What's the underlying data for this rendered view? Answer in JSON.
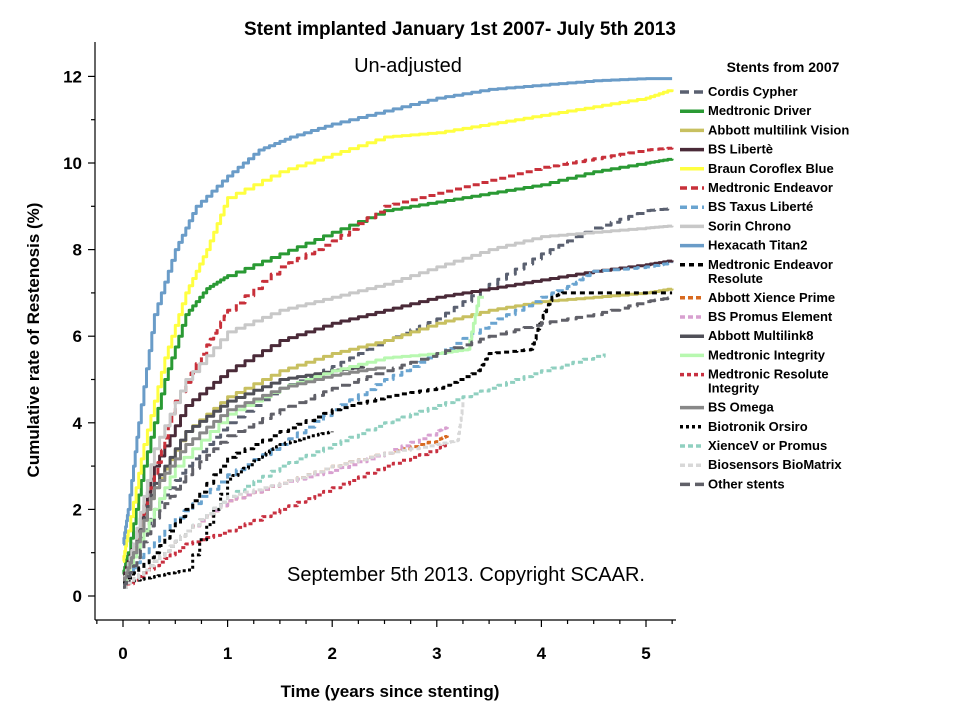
{
  "chart_data": {
    "type": "line",
    "title": "Stent implanted January 1st 2007- July 5th 2013",
    "subtitle": "Un-adjusted",
    "xlabel": "Time (years since stenting)",
    "ylabel": "Cumulative rate of Restenosis (%)",
    "annotation": "September 5th 2013. Copyright SCAAR.",
    "legend_title": "Stents from 2007",
    "legend_position": "right",
    "xlim": [
      -0.25,
      5.3
    ],
    "ylim": [
      -0.2,
      12.6
    ],
    "xticks": [
      0,
      1,
      2,
      3,
      4,
      5
    ],
    "yticks": [
      0,
      2,
      4,
      6,
      8,
      10,
      12
    ],
    "grid": false,
    "series": [
      {
        "name": "Cordis Cypher",
        "color": "#5a6070",
        "dash": "9,5",
        "x": [
          0,
          0.1,
          0.3,
          0.6,
          1,
          1.5,
          2,
          2.5,
          3,
          3.5,
          4,
          4.5,
          5,
          5.25
        ],
        "y": [
          0.3,
          1.0,
          2.0,
          3.0,
          4.0,
          4.8,
          5.3,
          5.9,
          6.4,
          7.2,
          7.9,
          8.5,
          8.9,
          8.95
        ]
      },
      {
        "name": "Medtronic Driver",
        "color": "#2a9a34",
        "dash": "",
        "x": [
          0,
          0.05,
          0.2,
          0.4,
          0.6,
          0.8,
          1,
          1.5,
          2,
          2.5,
          3,
          3.5,
          4,
          4.5,
          5,
          5.25
        ],
        "y": [
          0.5,
          1.0,
          3.0,
          5.0,
          6.5,
          7.1,
          7.4,
          7.9,
          8.4,
          8.9,
          9.1,
          9.3,
          9.5,
          9.8,
          10.0,
          10.1
        ]
      },
      {
        "name": "Abbott multilink Vision",
        "color": "#c8c060",
        "dash": "",
        "x": [
          0,
          0.1,
          0.3,
          0.6,
          1,
          1.5,
          2,
          2.5,
          3,
          3.5,
          4,
          4.5,
          5,
          5.25
        ],
        "y": [
          0.3,
          1.0,
          2.5,
          3.8,
          4.6,
          5.2,
          5.6,
          5.9,
          6.3,
          6.6,
          6.8,
          6.9,
          7.0,
          7.1
        ]
      },
      {
        "name": "BS Libertè",
        "color": "#4a2a38",
        "dash": "",
        "x": [
          0,
          0.1,
          0.3,
          0.6,
          1,
          1.5,
          2,
          2.5,
          3,
          3.5,
          4,
          4.5,
          5,
          5.25
        ],
        "y": [
          0.4,
          1.2,
          3.0,
          4.4,
          5.2,
          5.9,
          6.3,
          6.6,
          6.9,
          7.1,
          7.3,
          7.5,
          7.65,
          7.75
        ]
      },
      {
        "name": "Braun Coroflex Blue",
        "color": "#ffff40",
        "dash": "",
        "x": [
          0,
          0.05,
          0.2,
          0.4,
          0.6,
          0.8,
          1,
          1.5,
          2,
          2.5,
          3,
          3.5,
          4,
          4.5,
          5,
          5.25
        ],
        "y": [
          0.8,
          1.5,
          3.5,
          5.5,
          7.0,
          8.0,
          9.2,
          9.8,
          10.2,
          10.6,
          10.7,
          10.9,
          11.1,
          11.3,
          11.5,
          11.7
        ]
      },
      {
        "name": "Medtronic Endeavor",
        "color": "#c8303a",
        "dash": "7,4",
        "x": [
          0,
          0.1,
          0.3,
          0.5,
          0.8,
          1,
          1.5,
          2,
          2.5,
          3,
          3.5,
          4,
          4.5,
          5,
          5.25
        ],
        "y": [
          0.3,
          1.0,
          2.8,
          4.5,
          5.8,
          6.6,
          7.6,
          8.2,
          9.0,
          9.3,
          9.6,
          9.9,
          10.1,
          10.3,
          10.35
        ]
      },
      {
        "name": "BS Taxus Liberté",
        "color": "#6aa4d0",
        "dash": "7,4",
        "x": [
          0,
          0.2,
          0.5,
          1,
          1.5,
          2,
          2.5,
          3,
          3.5,
          4,
          4.3,
          4.5,
          5,
          5.25
        ],
        "y": [
          0.3,
          1.0,
          1.8,
          2.8,
          3.5,
          4.3,
          5.0,
          5.6,
          6.3,
          6.9,
          7.2,
          7.5,
          7.6,
          7.7
        ]
      },
      {
        "name": "Sorin Chrono",
        "color": "#c8c8c8",
        "dash": "",
        "x": [
          0,
          0.1,
          0.3,
          0.6,
          1,
          1.5,
          2,
          2.5,
          3,
          3.5,
          4,
          4.5,
          5,
          5.25
        ],
        "y": [
          0.3,
          1.2,
          3.4,
          5.0,
          6.1,
          6.6,
          6.9,
          7.2,
          7.6,
          8.0,
          8.3,
          8.4,
          8.5,
          8.55
        ]
      },
      {
        "name": "Hexacath Titan2",
        "color": "#6a9cc8",
        "dash": "",
        "x": [
          0,
          0.05,
          0.15,
          0.3,
          0.5,
          0.7,
          1,
          1.3,
          1.6,
          2,
          2.5,
          3,
          3.5,
          4,
          4.5,
          5,
          5.25
        ],
        "y": [
          1.2,
          2.0,
          4.0,
          6.5,
          8.0,
          9.0,
          9.7,
          10.3,
          10.6,
          10.9,
          11.2,
          11.5,
          11.7,
          11.8,
          11.9,
          11.95,
          11.95
        ]
      },
      {
        "name": "Medtronic Endeavor Resolute",
        "color": "#000000",
        "dash": "5,4",
        "x": [
          0,
          0.3,
          0.6,
          1,
          1.5,
          2,
          2.5,
          3,
          3.4,
          3.5,
          3.9,
          4.0,
          4.1,
          4.2,
          5.25
        ],
        "y": [
          0.3,
          1.0,
          2.0,
          3.2,
          3.8,
          4.3,
          4.6,
          4.8,
          5.2,
          5.6,
          5.7,
          6.4,
          6.9,
          7.0,
          7.0
        ]
      },
      {
        "name": "Abbott Xience Prime",
        "color": "#d86a20",
        "dash": "5,3",
        "x": [
          0,
          0.3,
          0.6,
          1,
          1.5,
          2,
          2.5,
          3,
          3.1
        ],
        "y": [
          0.2,
          0.8,
          1.5,
          2.2,
          2.6,
          3.0,
          3.3,
          3.6,
          3.7
        ]
      },
      {
        "name": "BS Promus Element",
        "color": "#d8a0d0",
        "dash": "5,3",
        "x": [
          0,
          0.3,
          0.6,
          1,
          1.5,
          2,
          2.5,
          3,
          3.1
        ],
        "y": [
          0.2,
          0.8,
          1.5,
          2.2,
          2.6,
          2.9,
          3.3,
          3.8,
          3.9
        ]
      },
      {
        "name": "Abbott Multilink8",
        "color": "#505058",
        "dash": "",
        "x": [
          0,
          0.1,
          0.3,
          0.6,
          1,
          1.5,
          2,
          2.3
        ],
        "y": [
          0.3,
          1.0,
          2.6,
          3.8,
          4.5,
          5.0,
          5.2,
          5.3
        ]
      },
      {
        "name": "Medtronic Integrity",
        "color": "#b8f8b0",
        "dash": "",
        "x": [
          0,
          0.2,
          0.5,
          1,
          1.5,
          2,
          2.5,
          3,
          3.3,
          3.4,
          3.45
        ],
        "y": [
          0.3,
          1.5,
          3.0,
          4.2,
          4.8,
          5.2,
          5.5,
          5.6,
          5.7,
          6.9,
          6.9
        ]
      },
      {
        "name": "Medtronic Resolute Integrity",
        "color": "#c83040",
        "dash": "4,3",
        "x": [
          0,
          0.3,
          0.6,
          1,
          1.5,
          2,
          2.5,
          3,
          3.1
        ],
        "y": [
          0.2,
          0.7,
          1.2,
          1.5,
          2.0,
          2.5,
          3.0,
          3.4,
          3.5
        ]
      },
      {
        "name": "BS Omega",
        "color": "#888888",
        "dash": "",
        "x": [
          0,
          0.1,
          0.3,
          0.6,
          1,
          1.5,
          2,
          2.5
        ],
        "y": [
          0.3,
          1.0,
          2.5,
          3.5,
          4.3,
          4.8,
          5.1,
          5.3
        ]
      },
      {
        "name": "Biotronik Orsiro",
        "color": "#000000",
        "dash": "3,3",
        "x": [
          0,
          0.2,
          0.4,
          0.6,
          1,
          1.3,
          1.5,
          1.8,
          2
        ],
        "y": [
          0.3,
          0.4,
          0.5,
          0.6,
          2.7,
          3.2,
          3.5,
          3.7,
          3.8
        ]
      },
      {
        "name": "XienceV or Promus",
        "color": "#90d0c0",
        "dash": "5,3",
        "x": [
          0,
          0.3,
          0.6,
          1,
          1.5,
          2,
          2.5,
          3,
          3.5,
          4,
          4.6
        ],
        "y": [
          0.2,
          0.8,
          1.5,
          2.3,
          3.0,
          3.5,
          4.0,
          4.4,
          4.8,
          5.2,
          5.6
        ]
      },
      {
        "name": "Biosensors BioMatrix",
        "color": "#d8d8d8",
        "dash": "5,3",
        "x": [
          0,
          0.3,
          0.6,
          1,
          1.5,
          2,
          2.5,
          3,
          3.2,
          3.25
        ],
        "y": [
          0.2,
          0.8,
          1.5,
          2.3,
          2.6,
          3.0,
          3.3,
          3.5,
          3.6,
          4.5
        ]
      },
      {
        "name": "Other stents",
        "color": "#606068",
        "dash": "10,5",
        "x": [
          0,
          0.1,
          0.3,
          0.6,
          1,
          1.5,
          2,
          2.5,
          3,
          3.5,
          4,
          4.5,
          5,
          5.25
        ],
        "y": [
          0.2,
          0.7,
          1.8,
          2.8,
          3.7,
          4.3,
          4.8,
          5.2,
          5.6,
          6.0,
          6.3,
          6.5,
          6.8,
          6.9
        ]
      }
    ]
  }
}
